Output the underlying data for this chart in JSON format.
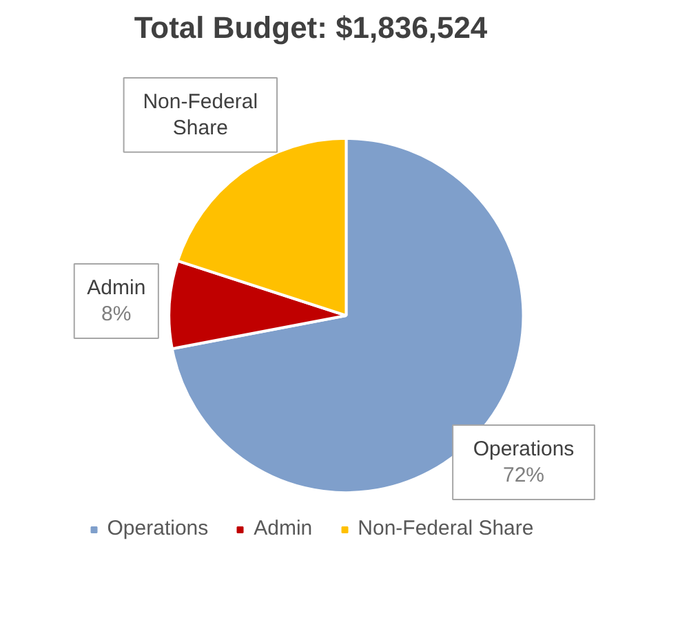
{
  "chart_data": {
    "type": "pie",
    "title": "Total Budget: $1,836,524",
    "categories": [
      "Operations",
      "Admin",
      "Non-Federal Share"
    ],
    "values": [
      72,
      8,
      20
    ],
    "colors": [
      "#7f9fcb",
      "#c00000",
      "#ffc000"
    ],
    "value_labels": [
      "72%",
      "8%",
      null
    ],
    "legend": "bottom"
  }
}
